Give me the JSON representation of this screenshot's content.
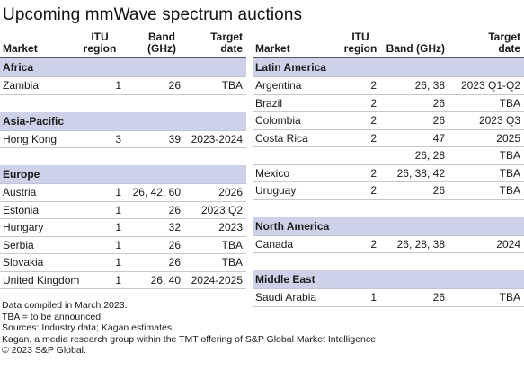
{
  "title": "Upcoming mmWave spectrum auctions",
  "headers": {
    "market": "Market",
    "itu_l1": "ITU",
    "itu_l2": "region",
    "band_l1": "Band",
    "band_l2": "(GHz)",
    "band_single": "Band (GHz)",
    "date_l1": "Target",
    "date_l2": "date"
  },
  "left": {
    "africa": {
      "name": "Africa",
      "rows": [
        {
          "market": "Zambia",
          "itu": "1",
          "band": "26",
          "date": "TBA"
        }
      ]
    },
    "asia": {
      "name": "Asia-Pacific",
      "rows": [
        {
          "market": "Hong Kong",
          "itu": "3",
          "band": "39",
          "date": "2023-2024"
        }
      ]
    },
    "europe": {
      "name": "Europe",
      "rows": [
        {
          "market": "Austria",
          "itu": "1",
          "band": "26, 42, 60",
          "date": "2026"
        },
        {
          "market": "Estonia",
          "itu": "1",
          "band": "26",
          "date": "2023 Q2"
        },
        {
          "market": "Hungary",
          "itu": "1",
          "band": "32",
          "date": "2023"
        },
        {
          "market": "Serbia",
          "itu": "1",
          "band": "26",
          "date": "TBA"
        },
        {
          "market": "Slovakia",
          "itu": "1",
          "band": "26",
          "date": "TBA"
        },
        {
          "market": "United Kingdom",
          "itu": "1",
          "band": "26, 40",
          "date": "2024-2025"
        }
      ]
    }
  },
  "right": {
    "latam": {
      "name": "Latin America",
      "rows": [
        {
          "market": "Argentina",
          "itu": "2",
          "band": "26, 38",
          "date": "2023 Q1-Q2"
        },
        {
          "market": "Brazil",
          "itu": "2",
          "band": "26",
          "date": "TBA"
        },
        {
          "market": "Colombia",
          "itu": "2",
          "band": "26",
          "date": "2023 Q3"
        },
        {
          "market": "Costa Rica",
          "itu": "2",
          "band": "47",
          "date": "2025"
        },
        {
          "market": "",
          "itu": "",
          "band": "26, 28",
          "date": "TBA"
        },
        {
          "market": "Mexico",
          "itu": "2",
          "band": "26, 38, 42",
          "date": "TBA"
        },
        {
          "market": "Uruguay",
          "itu": "2",
          "band": "26",
          "date": "TBA"
        }
      ]
    },
    "na": {
      "name": "North America",
      "rows": [
        {
          "market": "Canada",
          "itu": "2",
          "band": "26, 28, 38",
          "date": "2024"
        }
      ]
    },
    "me": {
      "name": "Middle East",
      "rows": [
        {
          "market": "Saudi Arabia",
          "itu": "1",
          "band": "26",
          "date": "TBA"
        }
      ]
    }
  },
  "notes": [
    "Data compiled in March 2023.",
    "TBA = to be announced.",
    "Sources: Industry data; Kagan estimates.",
    "Kagan, a media research group within the TMT offering of S&P Global Market Intelligence.",
    "© 2023 S&P Global."
  ]
}
